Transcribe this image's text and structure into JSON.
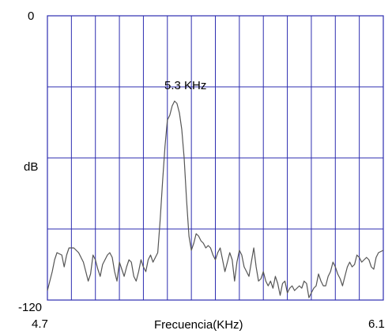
{
  "chart_data": {
    "type": "line",
    "title": "",
    "xlabel": "Frecuencia(KHz)",
    "ylabel": "dB",
    "xlim": [
      4.7,
      6.1
    ],
    "ylim": [
      -120,
      0
    ],
    "x_tick_labels": [
      "4.7",
      "6.1"
    ],
    "y_tick_labels": [
      "0",
      "dB",
      "-120"
    ],
    "grid": true,
    "vertical_grid_lines": 14,
    "horizontal_grid_lines": 3,
    "annotation": {
      "text": "5.3 KHz",
      "x": 5.3,
      "y": -41
    },
    "colors": {
      "grid": "#2d2db0",
      "curve": "#555555",
      "background": "#ffffff"
    },
    "series": [
      {
        "x": [
          4.7,
          4.72,
          4.73,
          4.74,
          4.76,
          4.77,
          4.78,
          4.79,
          4.8,
          4.81,
          4.83,
          4.85,
          4.86,
          4.87,
          4.88,
          4.89,
          4.9,
          4.91,
          4.92,
          4.93,
          4.95,
          4.96,
          4.97,
          4.98,
          4.99,
          5.0,
          5.01,
          5.02,
          5.03,
          5.04,
          5.05,
          5.06,
          5.07,
          5.08,
          5.09,
          5.1,
          5.11,
          5.12,
          5.13,
          5.14,
          5.16,
          5.17,
          5.18,
          5.19,
          5.2,
          5.21,
          5.22,
          5.23,
          5.24,
          5.25,
          5.26,
          5.27,
          5.28,
          5.29,
          5.3,
          5.31,
          5.32,
          5.33,
          5.34,
          5.35,
          5.36,
          5.37,
          5.38,
          5.39,
          5.4,
          5.41,
          5.42,
          5.43,
          5.44,
          5.45,
          5.46,
          5.47,
          5.48,
          5.49,
          5.5,
          5.51,
          5.52,
          5.53,
          5.54,
          5.55,
          5.56,
          5.57,
          5.58,
          5.59,
          5.6,
          5.61,
          5.62,
          5.63,
          5.64,
          5.65,
          5.66,
          5.67,
          5.68,
          5.69,
          5.7,
          5.71,
          5.72,
          5.73,
          5.74,
          5.75,
          5.76,
          5.77,
          5.78,
          5.79,
          5.8,
          5.81,
          5.82,
          5.83,
          5.84,
          5.85,
          5.86,
          5.87,
          5.88,
          5.89,
          5.9,
          5.91,
          5.92,
          5.93,
          5.94,
          5.95,
          5.96,
          5.97,
          5.98,
          5.99,
          6.0,
          6.01,
          6.02,
          6.03,
          6.04,
          6.05,
          6.06,
          6.07,
          6.08,
          6.1
        ],
        "y": [
          -116,
          -108,
          -103,
          -100,
          -101,
          -106,
          -101,
          -98,
          -98,
          -98,
          -100,
          -104,
          -108,
          -112,
          -109,
          -101,
          -103,
          -107,
          -110,
          -105,
          -101,
          -100,
          -102,
          -108,
          -112,
          -104,
          -107,
          -110,
          -106,
          -103,
          -104,
          -110,
          -112,
          -108,
          -103,
          -106,
          -108,
          -103,
          -101,
          -104,
          -100,
          -86,
          -70,
          -55,
          -44,
          -42,
          -38,
          -36,
          -37,
          -41,
          -48,
          -60,
          -78,
          -93,
          -99,
          -96,
          -92,
          -93,
          -95,
          -96,
          -98,
          -97,
          -98,
          -101,
          -103,
          -100,
          -98,
          -103,
          -108,
          -104,
          -100,
          -103,
          -112,
          -104,
          -99,
          -101,
          -106,
          -108,
          -110,
          -104,
          -98,
          -106,
          -112,
          -111,
          -108,
          -112,
          -114,
          -112,
          -115,
          -110,
          -113,
          -118,
          -113,
          -112,
          -117,
          -115,
          -114,
          -116,
          -115,
          -114,
          -115,
          -112,
          -113,
          -119,
          -117,
          -115,
          -114,
          -109,
          -112,
          -114,
          -114,
          -110,
          -108,
          -104,
          -106,
          -109,
          -111,
          -114,
          -110,
          -106,
          -104,
          -106,
          -105,
          -101,
          -102,
          -104,
          -103,
          -102,
          -103,
          -106,
          -107,
          -102,
          -100,
          -99
        ]
      }
    ]
  }
}
